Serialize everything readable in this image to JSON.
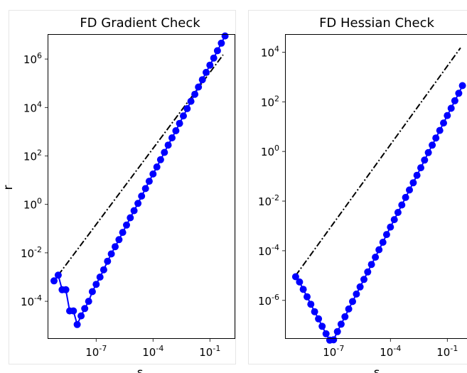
{
  "chart_data": [
    {
      "type": "line",
      "title": "FD Gradient Check",
      "xlabel": "ε",
      "ylabel": "r",
      "xscale": "log",
      "yscale": "log",
      "xlim": [
        3e-10,
        2
      ],
      "ylim": [
        3e-06,
        10000000.0
      ],
      "grid": false,
      "xticks": [
        {
          "exp": "-7",
          "value": 1e-07
        },
        {
          "exp": "-4",
          "value": 0.0001
        },
        {
          "exp": "-1",
          "value": 0.1
        }
      ],
      "yticks": [
        {
          "exp": "-4",
          "value": 0.0001
        },
        {
          "exp": "-2",
          "value": 0.01
        },
        {
          "exp": "0",
          "value": 1
        },
        {
          "exp": "2",
          "value": 100
        },
        {
          "exp": "4",
          "value": 10000
        },
        {
          "exp": "6",
          "value": 1000000
        }
      ],
      "series": [
        {
          "style": "reference",
          "color": "#000000",
          "x": [
            1e-09,
            0.5
          ],
          "y": [
            0.0012,
            1500000.0
          ]
        },
        {
          "style": "markers",
          "color": "#0000ff",
          "x": [
            6e-10,
            1e-09,
            1.6e-09,
            2.5e-09,
            4e-09,
            6.3e-09,
            1e-08,
            1.6e-08,
            2.5e-08,
            4e-08,
            6.3e-08,
            1e-07,
            1.6e-07,
            2.5e-07,
            4e-07,
            6.3e-07,
            1e-06,
            1.6e-06,
            2.5e-06,
            4e-06,
            6.3e-06,
            1e-05,
            1.6e-05,
            2.5e-05,
            4e-05,
            6.3e-05,
            0.0001,
            0.00016,
            0.00025,
            0.0004,
            0.00063,
            0.001,
            0.0016,
            0.0025,
            0.004,
            0.0063,
            0.01,
            0.016,
            0.025,
            0.04,
            0.063,
            0.1,
            0.16,
            0.25,
            0.4,
            0.63
          ],
          "y": [
            0.0007,
            0.0012,
            0.0003,
            0.0003,
            4e-05,
            4e-05,
            1.1e-05,
            2.5e-05,
            5e-05,
            0.0001,
            0.00025,
            0.0005,
            0.001,
            0.002,
            0.0045,
            0.009,
            0.018,
            0.035,
            0.07,
            0.14,
            0.28,
            0.55,
            1.1,
            2.2,
            4.5,
            9,
            18,
            35,
            70,
            140,
            280,
            560,
            1100,
            2200,
            4500,
            9000,
            18000,
            35000,
            70000,
            140000,
            280000,
            560000,
            1100000,
            2200000,
            4500000,
            9000000
          ]
        }
      ]
    },
    {
      "type": "line",
      "title": "FD Hessian Check",
      "xlabel": "ε",
      "ylabel": "",
      "xscale": "log",
      "yscale": "log",
      "xlim": [
        3e-10,
        2
      ],
      "ylim": [
        3e-08,
        50000.0
      ],
      "grid": false,
      "xticks": [
        {
          "exp": "-7",
          "value": 1e-07
        },
        {
          "exp": "-4",
          "value": 0.0001
        },
        {
          "exp": "-1",
          "value": 0.1
        }
      ],
      "yticks": [
        {
          "exp": "-6",
          "value": 1e-06
        },
        {
          "exp": "-4",
          "value": 0.0001
        },
        {
          "exp": "-2",
          "value": 0.01
        },
        {
          "exp": "0",
          "value": 1
        },
        {
          "exp": "2",
          "value": 100
        },
        {
          "exp": "4",
          "value": 10000
        }
      ],
      "series": [
        {
          "style": "reference",
          "color": "#000000",
          "x": [
            1e-09,
            0.5
          ],
          "y": [
            1e-05,
            15000
          ]
        },
        {
          "style": "markers",
          "color": "#0000ff",
          "x": [
            1e-09,
            1.6e-09,
            2.5e-09,
            4e-09,
            6.3e-09,
            1e-08,
            1.6e-08,
            2.5e-08,
            4e-08,
            6.3e-08,
            1e-07,
            1.6e-07,
            2.5e-07,
            4e-07,
            6.3e-07,
            1e-06,
            1.6e-06,
            2.5e-06,
            4e-06,
            6.3e-06,
            1e-05,
            1.6e-05,
            2.5e-05,
            4e-05,
            6.3e-05,
            0.0001,
            0.00016,
            0.00025,
            0.0004,
            0.00063,
            0.001,
            0.0016,
            0.0025,
            0.004,
            0.0063,
            0.01,
            0.016,
            0.025,
            0.04,
            0.063,
            0.1,
            0.16,
            0.25,
            0.4,
            0.63
          ],
          "y": [
            9e-06,
            5.5e-06,
            2.8e-06,
            1.4e-06,
            7e-07,
            3.5e-07,
            1.8e-07,
            9e-08,
            4.5e-08,
            2.5e-08,
            2.6e-08,
            5.5e-08,
            1.1e-07,
            2.2e-07,
            4.5e-07,
            9e-07,
            1.8e-06,
            3.5e-06,
            7e-06,
            1.4e-05,
            2.8e-05,
            5.5e-05,
            0.00011,
            0.00022,
            0.00045,
            0.0009,
            0.0018,
            0.0035,
            0.007,
            0.014,
            0.028,
            0.055,
            0.11,
            0.22,
            0.45,
            0.9,
            1.8,
            3.5,
            7,
            14,
            28,
            55,
            110,
            220,
            450
          ]
        }
      ]
    }
  ]
}
